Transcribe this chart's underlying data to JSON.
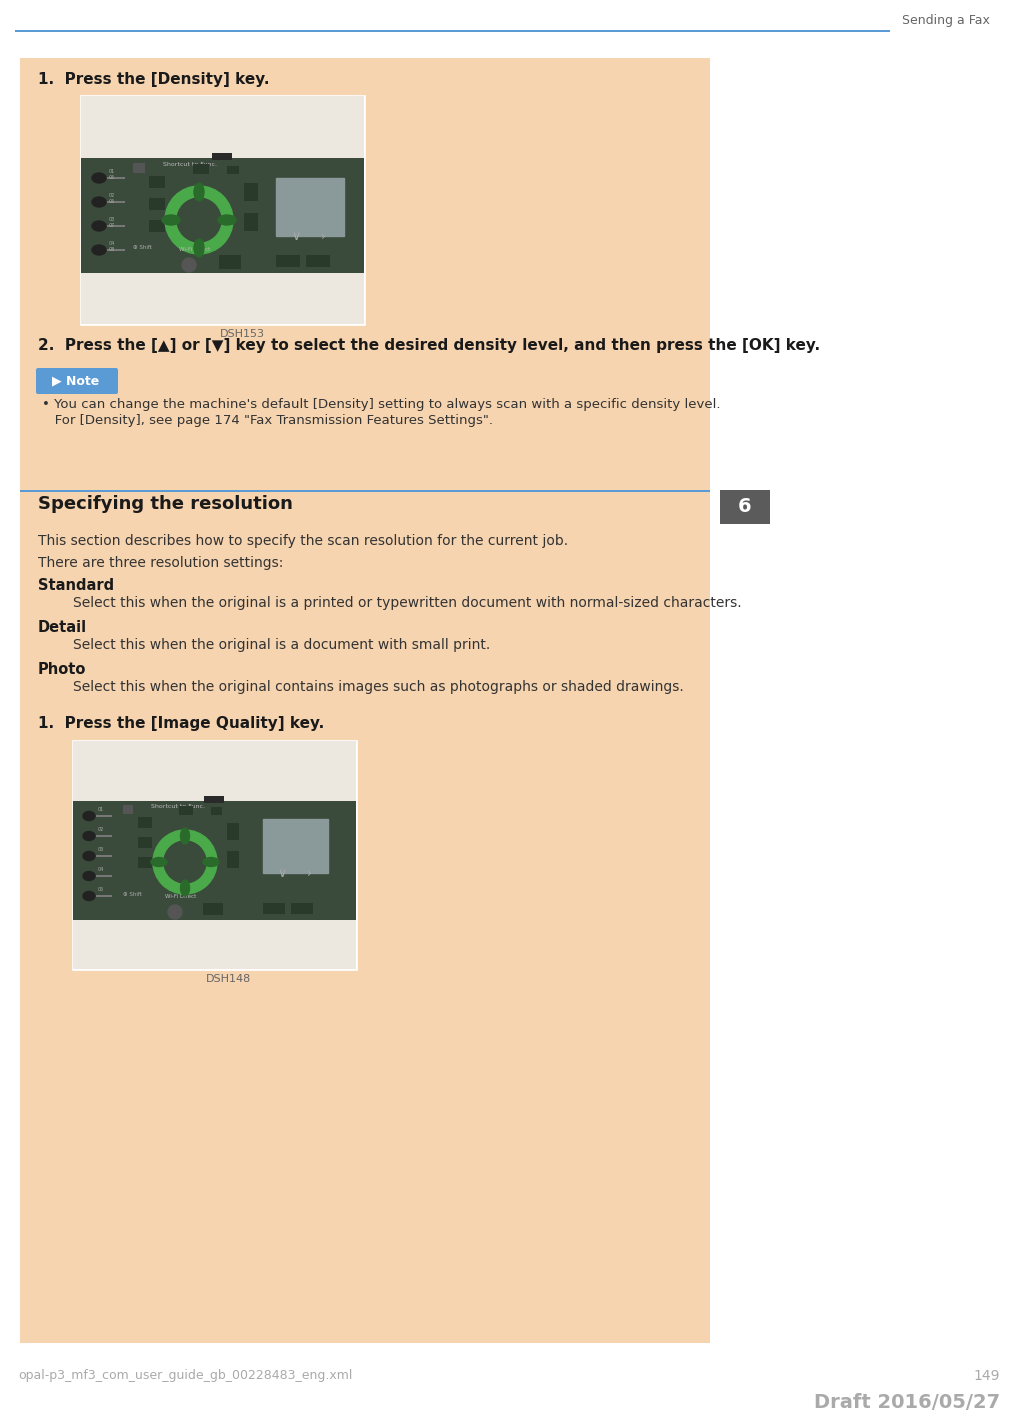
{
  "page_bg": "#ffffff",
  "content_bg": "#f6d4b0",
  "header_text": "Sending a Fax",
  "header_line_color": "#5b9bd5",
  "step1_text": "1.  Press the [Density] key.",
  "step2_text": "2.  Press the [▲] or [▼] key to select the desired density level, and then press the [OK] key.",
  "note_label": "▶ Note",
  "note_icon_color": "#5b9bd5",
  "note_line1": "• You can change the machine's default [Density] setting to always scan with a specific density level.",
  "note_line2": "   For [Density], see page 174 \"Fax Transmission Features Settings\".",
  "section_title": "Specifying the resolution",
  "section_title_line_color": "#5b9bd5",
  "section_num_bg": "#5b5b5b",
  "section_num_text": "6",
  "desc1": "This section describes how to specify the scan resolution for the current job.",
  "desc2": "There are three resolution settings:",
  "standard_label": "Standard",
  "standard_desc": "        Select this when the original is a printed or typewritten document with normal-sized characters.",
  "detail_label": "Detail",
  "detail_desc": "        Select this when the original is a document with small print.",
  "photo_label": "Photo",
  "photo_desc": "        Select this when the original contains images such as photographs or shaded drawings.",
  "step1b_text": "1.  Press the [Image Quality] key.",
  "dsh153": "DSH153",
  "dsh148": "DSH148",
  "footer_left": "opal-p3_mf3_com_user_guide_gb_00228483_eng.xml",
  "footer_page": "149",
  "footer_draft": "Draft 2016/05/27",
  "device_bg": "#3a4a3b",
  "green_color": "#4aaa4a",
  "dark_green": "#2a6a2a",
  "gray_screen": "#8a9a9a"
}
